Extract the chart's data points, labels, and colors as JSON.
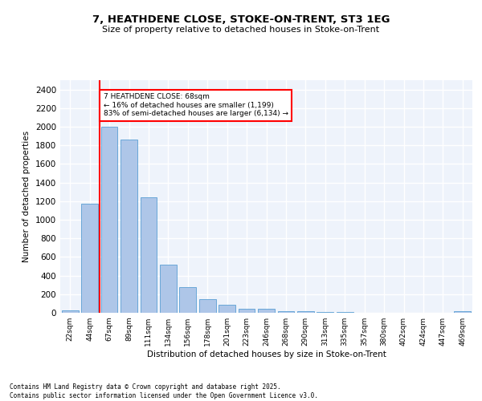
{
  "title1": "7, HEATHDENE CLOSE, STOKE-ON-TRENT, ST3 1EG",
  "title2": "Size of property relative to detached houses in Stoke-on-Trent",
  "xlabel": "Distribution of detached houses by size in Stoke-on-Trent",
  "ylabel": "Number of detached properties",
  "bar_labels": [
    "22sqm",
    "44sqm",
    "67sqm",
    "89sqm",
    "111sqm",
    "134sqm",
    "156sqm",
    "178sqm",
    "201sqm",
    "223sqm",
    "246sqm",
    "268sqm",
    "290sqm",
    "313sqm",
    "335sqm",
    "357sqm",
    "380sqm",
    "402sqm",
    "424sqm",
    "447sqm",
    "469sqm"
  ],
  "bar_values": [
    25,
    1170,
    2000,
    1860,
    1240,
    520,
    275,
    150,
    90,
    45,
    40,
    15,
    20,
    8,
    5,
    3,
    2,
    2,
    2,
    1,
    20
  ],
  "bar_color": "#aec6e8",
  "bar_edge_color": "#5a9fd4",
  "vline_x_index": 2,
  "annotation_box_text": "7 HEATHDENE CLOSE: 68sqm\n← 16% of detached houses are smaller (1,199)\n83% of semi-detached houses are larger (6,134) →",
  "annotation_box_color": "white",
  "annotation_box_edge_color": "red",
  "vline_color": "red",
  "ylim": [
    0,
    2500
  ],
  "yticks": [
    0,
    200,
    400,
    600,
    800,
    1000,
    1200,
    1400,
    1600,
    1800,
    2000,
    2200,
    2400
  ],
  "footer1": "Contains HM Land Registry data © Crown copyright and database right 2025.",
  "footer2": "Contains public sector information licensed under the Open Government Licence v3.0.",
  "bg_color": "#eef3fb",
  "grid_color": "white"
}
